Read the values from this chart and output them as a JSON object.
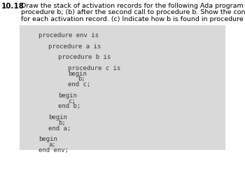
{
  "problem_number": "10.18",
  "header_line1": "Draw the stack of activation records for the following Ada program (a) after the first call to",
  "header_line2": "procedure b; (b) after the second call to procedure b. Show the control links and the access links",
  "header_line3": "for each activation record. (c) Indicate how b is found in procedure c.",
  "code_lines": [
    {
      "text": "procedure env is",
      "indent": 0
    },
    {
      "text": "",
      "indent": 0
    },
    {
      "text": "procedure a is",
      "indent": 1
    },
    {
      "text": "",
      "indent": 0
    },
    {
      "text": "procedure b is",
      "indent": 2
    },
    {
      "text": "",
      "indent": 0
    },
    {
      "text": "procedure c is",
      "indent": 3
    },
    {
      "text": "begin",
      "indent": 3
    },
    {
      "text": "b;",
      "indent": 4
    },
    {
      "text": "end c;",
      "indent": 3
    },
    {
      "text": "",
      "indent": 0
    },
    {
      "text": "begin",
      "indent": 2
    },
    {
      "text": "c;",
      "indent": 3
    },
    {
      "text": "end b;",
      "indent": 2
    },
    {
      "text": "",
      "indent": 0
    },
    {
      "text": "begin",
      "indent": 1
    },
    {
      "text": "b;",
      "indent": 2
    },
    {
      "text": "end a;",
      "indent": 1
    },
    {
      "text": "",
      "indent": 0
    },
    {
      "text": "begin",
      "indent": 0
    },
    {
      "text": "a;",
      "indent": 1
    },
    {
      "text": "end env;",
      "indent": 0
    }
  ],
  "bg_color": "#d9d9d9",
  "text_color": "#3a3a3a",
  "header_color": "#000000",
  "code_font_size": 6.5,
  "header_font_size": 6.8,
  "problem_font_size": 7.5,
  "indent_pts": 14,
  "monospace_font": "monospace"
}
